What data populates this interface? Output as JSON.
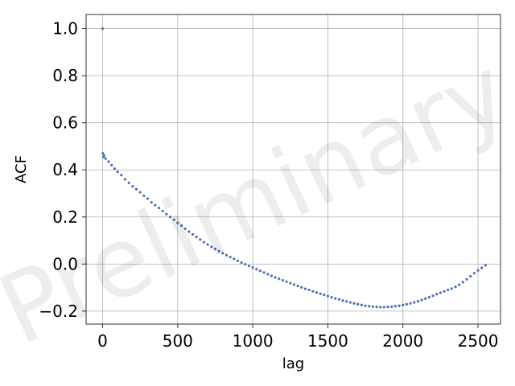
{
  "chart_data": {
    "type": "scatter",
    "title": "",
    "xlabel": "lag",
    "ylabel": "ACF",
    "xlim": [
      -110,
      2650
    ],
    "ylim": [
      -0.255,
      1.06
    ],
    "x_ticks": [
      0,
      500,
      1000,
      1500,
      2000,
      2500
    ],
    "y_ticks": [
      -0.2,
      0.0,
      0.2,
      0.4,
      0.6,
      0.8,
      1.0
    ],
    "x_tick_labels": [
      "0",
      "500",
      "1000",
      "1500",
      "2000",
      "2500"
    ],
    "y_tick_labels": [
      "−0.2",
      "0.0",
      "0.2",
      "0.4",
      "0.6",
      "0.8",
      "1.0"
    ],
    "grid": true,
    "marker_color": "#4c72b0",
    "watermark": "Preliminary",
    "series": [
      {
        "points": [
          [
            0,
            1.0
          ],
          [
            2,
            0.47
          ],
          [
            5,
            0.455
          ],
          [
            10,
            0.46
          ],
          [
            20,
            0.448
          ],
          [
            40,
            0.435
          ],
          [
            60,
            0.42
          ],
          [
            80,
            0.405
          ],
          [
            100,
            0.392
          ],
          [
            125,
            0.378
          ],
          [
            150,
            0.36
          ],
          [
            175,
            0.345
          ],
          [
            200,
            0.33
          ],
          [
            225,
            0.318
          ],
          [
            250,
            0.305
          ],
          [
            275,
            0.29
          ],
          [
            300,
            0.278
          ],
          [
            325,
            0.262
          ],
          [
            350,
            0.25
          ],
          [
            375,
            0.238
          ],
          [
            400,
            0.225
          ],
          [
            425,
            0.212
          ],
          [
            450,
            0.2
          ],
          [
            475,
            0.188
          ],
          [
            500,
            0.175
          ],
          [
            525,
            0.163
          ],
          [
            550,
            0.15
          ],
          [
            575,
            0.138
          ],
          [
            600,
            0.126
          ],
          [
            625,
            0.115
          ],
          [
            650,
            0.104
          ],
          [
            675,
            0.093
          ],
          [
            700,
            0.083
          ],
          [
            725,
            0.073
          ],
          [
            750,
            0.064
          ],
          [
            775,
            0.055
          ],
          [
            800,
            0.046
          ],
          [
            825,
            0.038
          ],
          [
            850,
            0.03
          ],
          [
            875,
            0.022
          ],
          [
            900,
            0.014
          ],
          [
            925,
            0.006
          ],
          [
            950,
            -0.001
          ],
          [
            975,
            -0.008
          ],
          [
            1000,
            -0.015
          ],
          [
            1025,
            -0.022
          ],
          [
            1050,
            -0.029
          ],
          [
            1075,
            -0.036
          ],
          [
            1100,
            -0.043
          ],
          [
            1125,
            -0.05
          ],
          [
            1150,
            -0.057
          ],
          [
            1175,
            -0.063
          ],
          [
            1200,
            -0.069
          ],
          [
            1225,
            -0.075
          ],
          [
            1250,
            -0.081
          ],
          [
            1275,
            -0.087
          ],
          [
            1300,
            -0.093
          ],
          [
            1325,
            -0.099
          ],
          [
            1350,
            -0.105
          ],
          [
            1375,
            -0.11
          ],
          [
            1400,
            -0.116
          ],
          [
            1425,
            -0.121
          ],
          [
            1450,
            -0.126
          ],
          [
            1475,
            -0.131
          ],
          [
            1500,
            -0.136
          ],
          [
            1525,
            -0.141
          ],
          [
            1550,
            -0.146
          ],
          [
            1575,
            -0.15
          ],
          [
            1600,
            -0.155
          ],
          [
            1625,
            -0.159
          ],
          [
            1650,
            -0.163
          ],
          [
            1675,
            -0.167
          ],
          [
            1700,
            -0.171
          ],
          [
            1725,
            -0.174
          ],
          [
            1750,
            -0.177
          ],
          [
            1775,
            -0.179
          ],
          [
            1800,
            -0.181
          ],
          [
            1825,
            -0.182
          ],
          [
            1850,
            -0.183
          ],
          [
            1875,
            -0.183
          ],
          [
            1900,
            -0.182
          ],
          [
            1925,
            -0.181
          ],
          [
            1950,
            -0.179
          ],
          [
            1975,
            -0.177
          ],
          [
            2000,
            -0.174
          ],
          [
            2025,
            -0.171
          ],
          [
            2050,
            -0.167
          ],
          [
            2075,
            -0.163
          ],
          [
            2100,
            -0.158
          ],
          [
            2125,
            -0.153
          ],
          [
            2150,
            -0.147
          ],
          [
            2175,
            -0.141
          ],
          [
            2200,
            -0.135
          ],
          [
            2225,
            -0.128
          ],
          [
            2250,
            -0.122
          ],
          [
            2275,
            -0.116
          ],
          [
            2300,
            -0.11
          ],
          [
            2325,
            -0.104
          ],
          [
            2350,
            -0.097
          ],
          [
            2375,
            -0.088
          ],
          [
            2400,
            -0.077
          ],
          [
            2425,
            -0.065
          ],
          [
            2450,
            -0.052
          ],
          [
            2475,
            -0.039
          ],
          [
            2500,
            -0.027
          ],
          [
            2525,
            -0.016
          ],
          [
            2550,
            -0.005
          ]
        ]
      }
    ]
  }
}
